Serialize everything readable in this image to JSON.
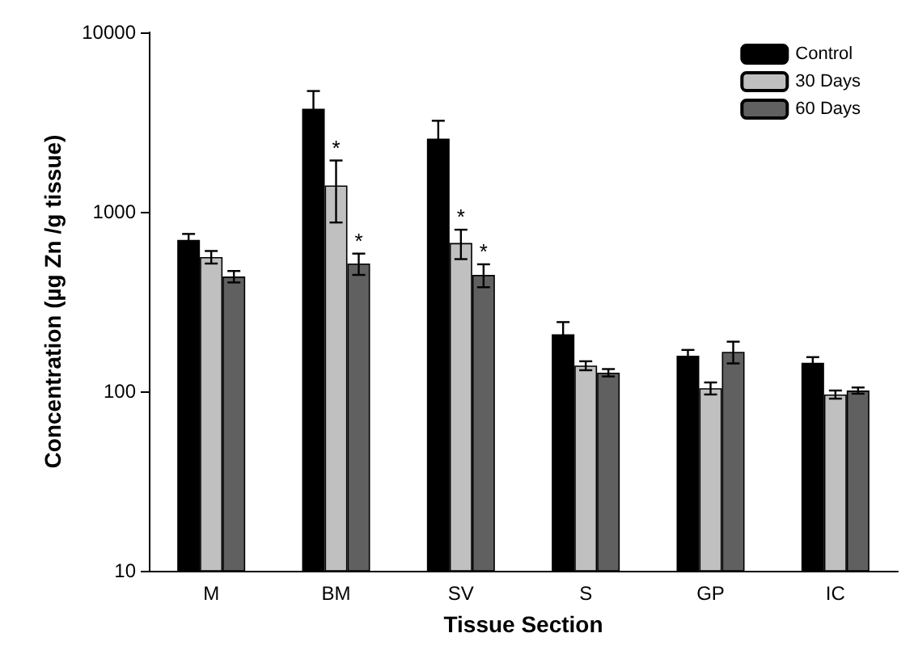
{
  "chart_data": {
    "type": "bar",
    "xlabel": "Tissue Section",
    "ylabel": "Concentration (µg Zn /g tissue)",
    "categories": [
      "M",
      "BM",
      "SV",
      "S",
      "GP",
      "IC"
    ],
    "series": [
      {
        "name": "Control",
        "color": "#000000",
        "values": [
          698,
          3750,
          2556,
          208,
          158,
          144
        ],
        "errors": [
          55,
          960,
          660,
          35,
          12,
          11
        ]
      },
      {
        "name": "30 Days",
        "color": "#c0c0c0",
        "values": [
          560,
          1402,
          670,
          139,
          104,
          96
        ],
        "errors": [
          45,
          530,
          125,
          8,
          8,
          5
        ],
        "value_labels": [
          null,
          "*",
          "*",
          null,
          null,
          null
        ]
      },
      {
        "name": "60 Days",
        "color": "#606060",
        "values": [
          436,
          515,
          445,
          127,
          166,
          101
        ],
        "errors": [
          32,
          70,
          65,
          6,
          23,
          4
        ],
        "value_labels": [
          null,
          "*",
          "*",
          null,
          null,
          null
        ]
      }
    ],
    "log": "y",
    "ylim": [
      10,
      10000
    ],
    "yticks": [
      10,
      100,
      1000,
      10000
    ],
    "grid": false,
    "legend": "top right"
  }
}
